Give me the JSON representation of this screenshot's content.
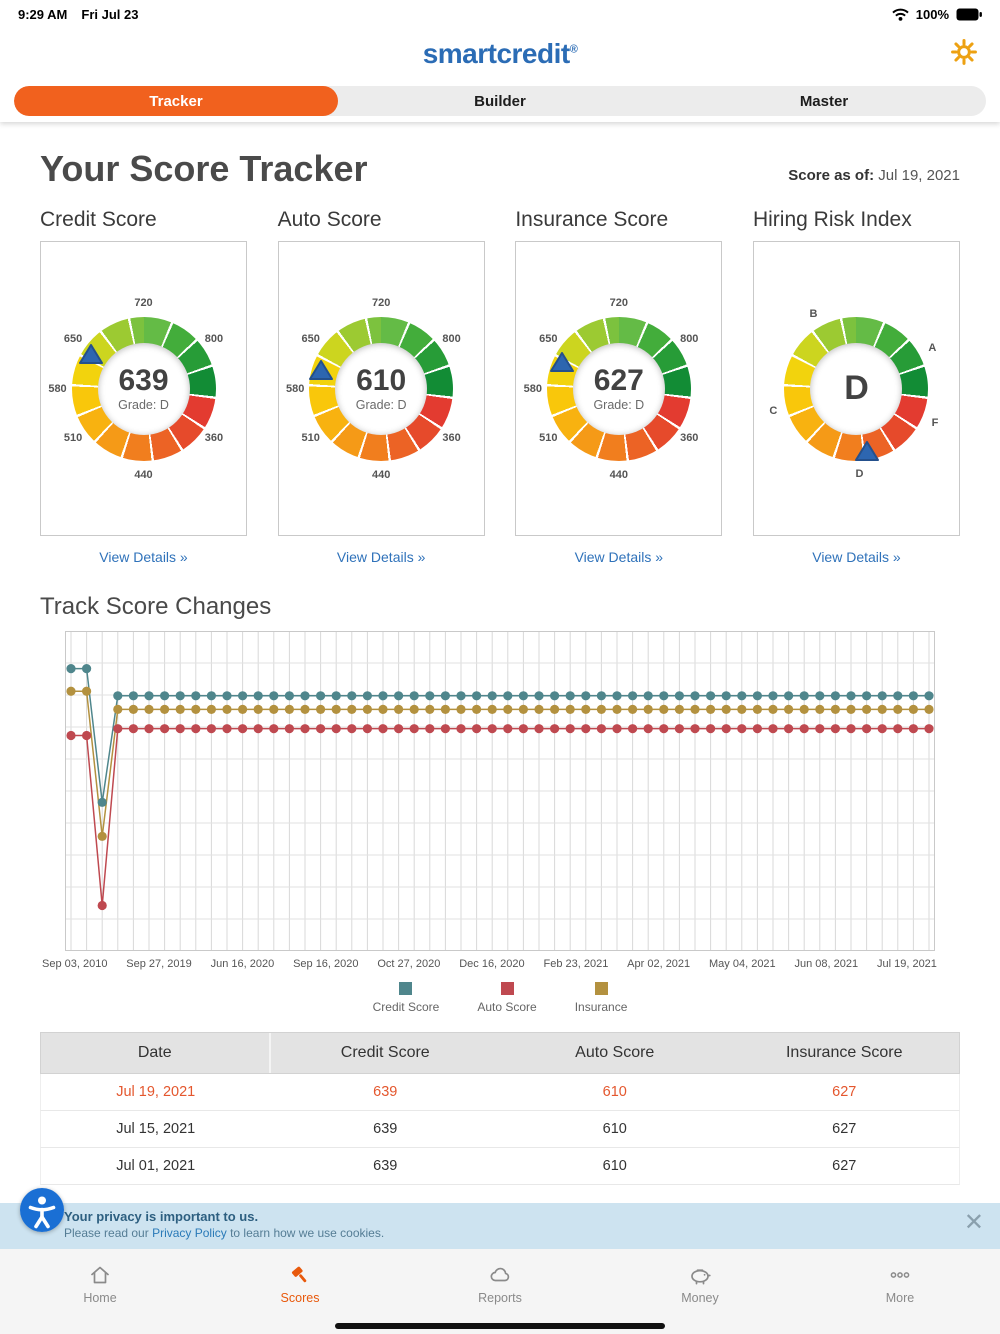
{
  "status": {
    "time": "9:29 AM",
    "date": "Fri Jul 23",
    "battery": "100%"
  },
  "header": {
    "logo": "smartcredit",
    "reg": "®"
  },
  "tabs": [
    {
      "label": "Tracker",
      "active": true
    },
    {
      "label": "Builder",
      "active": false
    },
    {
      "label": "Master",
      "active": false
    }
  ],
  "page": {
    "title": "Your Score Tracker",
    "asof_label": "Score as of:",
    "asof_date": "Jul 19, 2021"
  },
  "colors": {
    "accent_orange": "#f1611e",
    "nav_active_orange": "#e8590c",
    "link_blue": "#2f72ba",
    "logo_blue": "#2b6cb5",
    "highlight_row": "#e4572e",
    "banner_blue": "#cde3f0"
  },
  "gauges": [
    {
      "title": "Credit Score",
      "value": "639",
      "grade": "Grade: D",
      "link": "View Details »",
      "marker_angle": 303,
      "labels": [
        {
          "text": "720",
          "angle": 0
        },
        {
          "text": "800",
          "angle": 55
        },
        {
          "text": "360",
          "angle": 125
        },
        {
          "text": "440",
          "angle": 180
        },
        {
          "text": "510",
          "angle": 235
        },
        {
          "text": "580",
          "angle": 270
        },
        {
          "text": "650",
          "angle": 305
        }
      ]
    },
    {
      "title": "Auto Score",
      "value": "610",
      "grade": "Grade: D",
      "link": "View Details »",
      "marker_angle": 287,
      "labels": [
        {
          "text": "720",
          "angle": 0
        },
        {
          "text": "800",
          "angle": 55
        },
        {
          "text": "360",
          "angle": 125
        },
        {
          "text": "440",
          "angle": 180
        },
        {
          "text": "510",
          "angle": 235
        },
        {
          "text": "580",
          "angle": 270
        },
        {
          "text": "650",
          "angle": 305
        }
      ]
    },
    {
      "title": "Insurance Score",
      "value": "627",
      "grade": "Grade: D",
      "link": "View Details »",
      "marker_angle": 295,
      "labels": [
        {
          "text": "720",
          "angle": 0
        },
        {
          "text": "800",
          "angle": 55
        },
        {
          "text": "360",
          "angle": 125
        },
        {
          "text": "440",
          "angle": 180
        },
        {
          "text": "510",
          "angle": 235
        },
        {
          "text": "580",
          "angle": 270
        },
        {
          "text": "650",
          "angle": 305
        }
      ]
    },
    {
      "title": "Hiring Risk Index",
      "value": "D",
      "grade": "",
      "link": "View Details »",
      "marker_angle": 170,
      "labels": [
        {
          "text": "A",
          "angle": 62
        },
        {
          "text": "B",
          "angle": 330
        },
        {
          "text": "C",
          "angle": 255
        },
        {
          "text": "D",
          "angle": 178
        },
        {
          "text": "F",
          "angle": 114
        }
      ]
    }
  ],
  "chart": {
    "title": "Track Score Changes"
  },
  "chart_data": {
    "type": "line",
    "title": "Track Score Changes",
    "ylim": [
      420,
      690
    ],
    "grid": true,
    "x_labels": [
      "Sep 03, 2010",
      "Sep 27, 2019",
      "Jun 16, 2020",
      "Sep 16, 2020",
      "Oct 27, 2020",
      "Dec 16, 2020",
      "Feb 23, 2021",
      "Apr 02, 2021",
      "May 04, 2021",
      "Jun 08, 2021",
      "Jul 19, 2021"
    ],
    "series": [
      {
        "name": "Insurance",
        "color": "#b3913f",
        "values": [
          643,
          643,
          515,
          627,
          627,
          627,
          627,
          627,
          627,
          627,
          627,
          627,
          627,
          627,
          627,
          627,
          627,
          627,
          627,
          627,
          627,
          627,
          627,
          627,
          627,
          627,
          627,
          627,
          627,
          627,
          627,
          627,
          627,
          627,
          627,
          627,
          627,
          627,
          627,
          627,
          627,
          627,
          627,
          627,
          627,
          627,
          627,
          627,
          627,
          627,
          627,
          627,
          627,
          627,
          627,
          627
        ]
      },
      {
        "name": "Auto Score",
        "color": "#bf4950",
        "values": [
          604,
          604,
          454,
          610,
          610,
          610,
          610,
          610,
          610,
          610,
          610,
          610,
          610,
          610,
          610,
          610,
          610,
          610,
          610,
          610,
          610,
          610,
          610,
          610,
          610,
          610,
          610,
          610,
          610,
          610,
          610,
          610,
          610,
          610,
          610,
          610,
          610,
          610,
          610,
          610,
          610,
          610,
          610,
          610,
          610,
          610,
          610,
          610,
          610,
          610,
          610,
          610,
          610,
          610,
          610,
          610
        ]
      },
      {
        "name": "Credit Score",
        "color": "#4f868c",
        "values": [
          663,
          663,
          545,
          639,
          639,
          639,
          639,
          639,
          639,
          639,
          639,
          639,
          639,
          639,
          639,
          639,
          639,
          639,
          639,
          639,
          639,
          639,
          639,
          639,
          639,
          639,
          639,
          639,
          639,
          639,
          639,
          639,
          639,
          639,
          639,
          639,
          639,
          639,
          639,
          639,
          639,
          639,
          639,
          639,
          639,
          639,
          639,
          639,
          639,
          639,
          639,
          639,
          639,
          639,
          639,
          639
        ]
      }
    ],
    "legend": [
      {
        "label": "Credit Score",
        "color": "#4f868c"
      },
      {
        "label": "Auto Score",
        "color": "#bf4950"
      },
      {
        "label": "Insurance",
        "color": "#b3913f"
      }
    ],
    "legend_position": "bottom"
  },
  "table": {
    "headers": [
      "Date",
      "Credit Score",
      "Auto Score",
      "Insurance Score"
    ],
    "rows": [
      {
        "cells": [
          "Jul 19, 2021",
          "639",
          "610",
          "627"
        ],
        "highlight": true
      },
      {
        "cells": [
          "Jul 15, 2021",
          "639",
          "610",
          "627"
        ],
        "highlight": false
      },
      {
        "cells": [
          "Jul 01, 2021",
          "639",
          "610",
          "627"
        ],
        "highlight": false
      }
    ]
  },
  "cookie": {
    "line1": "Your privacy is important to us.",
    "line2_pre": "Please read our ",
    "link": "Privacy Policy",
    "line2_post": " to learn how we use cookies.",
    "close": "✕"
  },
  "nav": [
    {
      "label": "Home",
      "active": false
    },
    {
      "label": "Scores",
      "active": true
    },
    {
      "label": "Reports",
      "active": false
    },
    {
      "label": "Money",
      "active": false
    },
    {
      "label": "More",
      "active": false
    }
  ]
}
